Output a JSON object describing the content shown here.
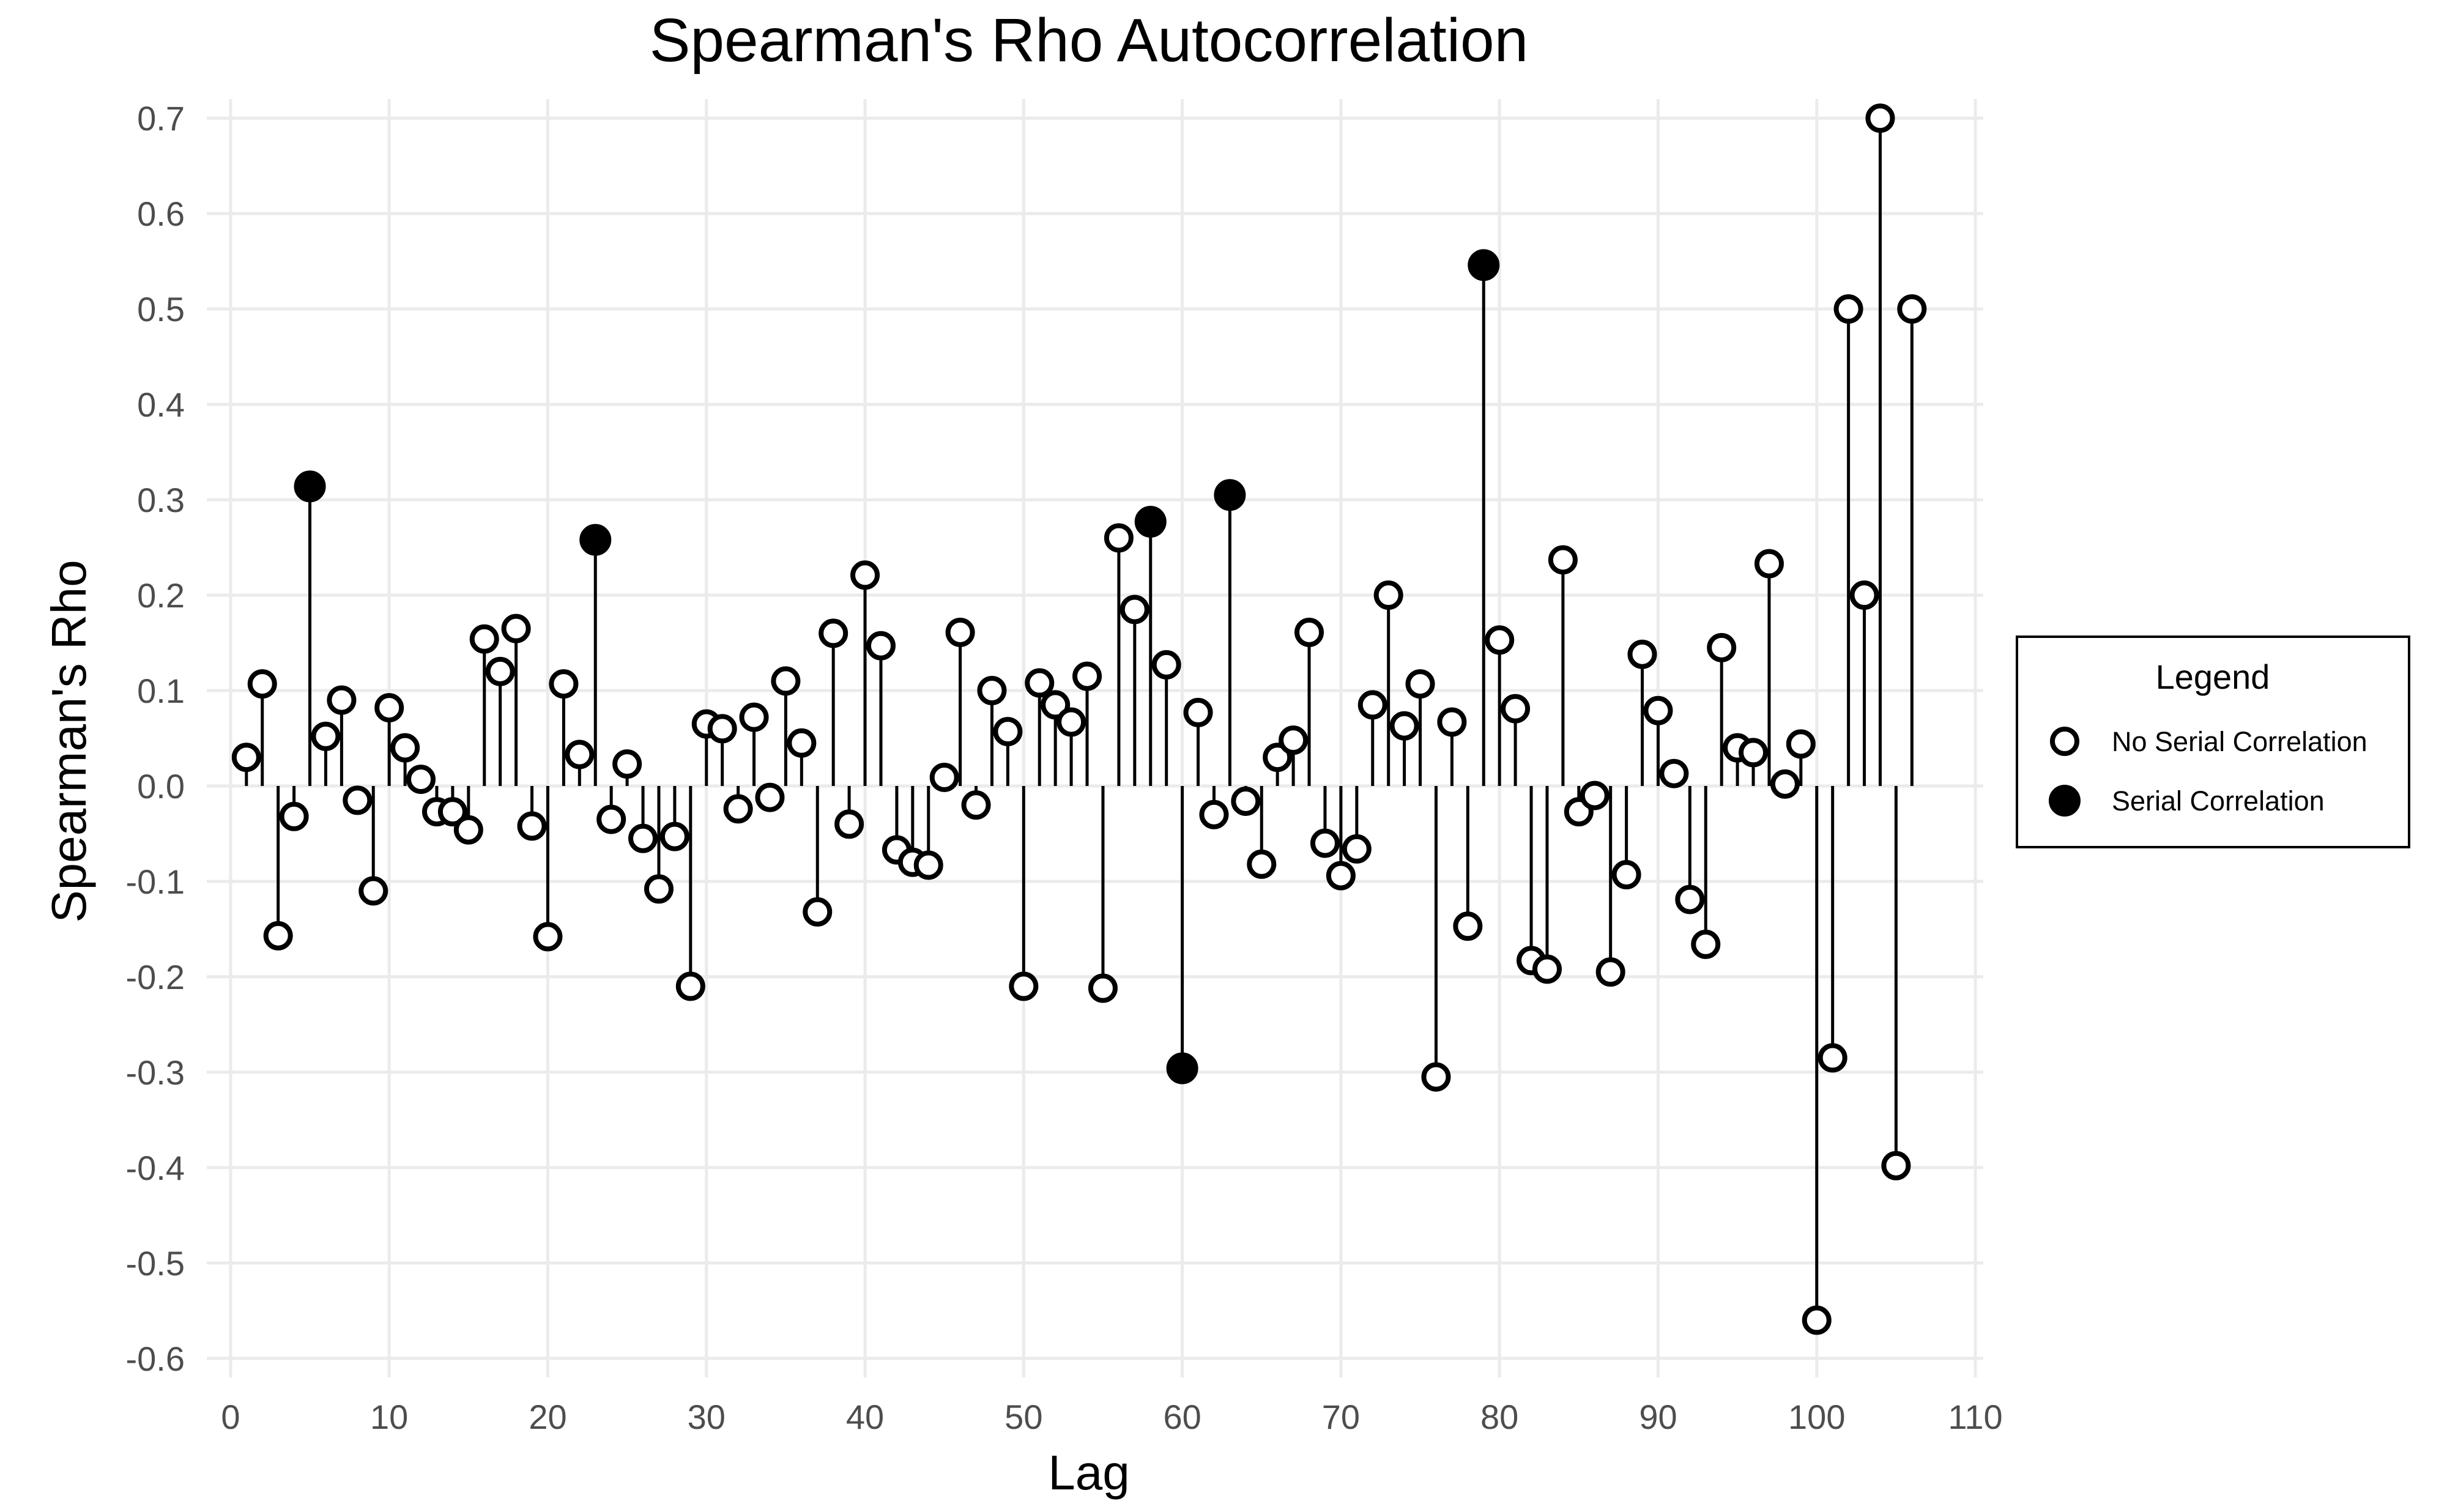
{
  "chart_data": {
    "type": "scatter",
    "title": "Spearman's Rho Autocorrelation",
    "xlabel": "Lag",
    "ylabel": "Spearman's Rho",
    "xlim": [
      -1.5,
      110.5
    ],
    "ylim": [
      -0.62,
      0.72
    ],
    "x_ticks": [
      0,
      10,
      20,
      30,
      40,
      50,
      60,
      70,
      80,
      90,
      100,
      110
    ],
    "y_ticks": [
      -0.6,
      -0.5,
      -0.4,
      -0.3,
      -0.2,
      -0.1,
      0.0,
      0.1,
      0.2,
      0.3,
      0.4,
      0.5,
      0.6,
      0.7
    ],
    "y_tick_labels": [
      "-0.6",
      "-0.5",
      "-0.4",
      "-0.3",
      "-0.2",
      "-0.1",
      "0.0",
      "0.1",
      "0.2",
      "0.3",
      "0.4",
      "0.5",
      "0.6",
      "0.7"
    ],
    "grid": true,
    "legend": {
      "title": "Legend",
      "position": "right",
      "entries": [
        {
          "label": "No Serial Correlation",
          "marker": "open-circle"
        },
        {
          "label": "Serial Correlation",
          "marker": "filled-circle"
        }
      ]
    },
    "lags": [
      1,
      2,
      3,
      4,
      5,
      6,
      7,
      8,
      9,
      10,
      11,
      12,
      13,
      14,
      15,
      16,
      17,
      18,
      19,
      20,
      21,
      22,
      23,
      24,
      25,
      26,
      27,
      28,
      29,
      30,
      31,
      32,
      33,
      34,
      35,
      36,
      37,
      38,
      39,
      40,
      41,
      42,
      43,
      44,
      45,
      46,
      47,
      48,
      49,
      50,
      51,
      52,
      53,
      54,
      55,
      56,
      57,
      58,
      59,
      60,
      61,
      62,
      63,
      64,
      65,
      66,
      67,
      68,
      69,
      70,
      71,
      72,
      73,
      74,
      75,
      76,
      77,
      78,
      79,
      80,
      81,
      82,
      83,
      84,
      85,
      86,
      87,
      88,
      89,
      90,
      91,
      92,
      93,
      94,
      95,
      96,
      97,
      98,
      99,
      100,
      101,
      102,
      103,
      104,
      105,
      106
    ],
    "rho": [
      0.03,
      0.107,
      -0.157,
      -0.032,
      0.314,
      0.052,
      0.09,
      -0.015,
      -0.11,
      0.082,
      0.04,
      0.007,
      -0.027,
      -0.027,
      -0.046,
      0.154,
      0.12,
      0.165,
      -0.042,
      -0.158,
      0.107,
      0.033,
      0.258,
      -0.035,
      0.023,
      -0.055,
      -0.108,
      -0.053,
      -0.21,
      0.065,
      0.06,
      -0.024,
      0.072,
      -0.012,
      0.11,
      0.045,
      -0.132,
      0.16,
      -0.04,
      0.221,
      0.147,
      -0.067,
      -0.08,
      -0.083,
      0.009,
      0.161,
      -0.02,
      0.1,
      0.057,
      -0.21,
      0.108,
      0.085,
      0.067,
      0.115,
      -0.212,
      0.26,
      0.185,
      0.277,
      0.127,
      -0.296,
      0.077,
      -0.03,
      0.305,
      -0.016,
      -0.082,
      0.03,
      0.048,
      0.161,
      -0.06,
      -0.094,
      -0.066,
      0.085,
      0.2,
      0.063,
      0.107,
      -0.305,
      0.067,
      -0.147,
      0.546,
      0.153,
      0.081,
      -0.183,
      -0.192,
      0.237,
      -0.027,
      -0.01,
      -0.195,
      -0.093,
      0.138,
      0.079,
      0.013,
      -0.119,
      -0.166,
      0.145,
      0.04,
      0.035,
      0.233,
      0.002,
      0.044,
      -0.56,
      -0.285,
      0.5,
      0.2,
      0.7,
      -0.398,
      0.5
    ],
    "serial_correlation_lags": [
      5,
      23,
      58,
      60,
      63,
      79
    ]
  }
}
